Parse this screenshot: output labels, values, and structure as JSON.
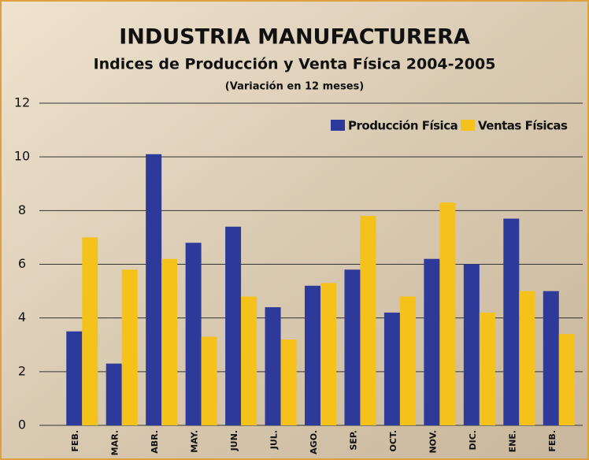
{
  "chart_data": {
    "type": "bar",
    "title": "INDUSTRIA MANUFACTURERA",
    "subtitle": "Indices de Producción y Venta Física 2004-2005",
    "note": "(Variación en 12 meses)",
    "categories": [
      "FEB.",
      "MAR.",
      "ABR.",
      "MAY.",
      "JUN.",
      "JUL.",
      "AGO.",
      "SEP.",
      "OCT.",
      "NOV.",
      "DIC.",
      "ENE.",
      "FEB."
    ],
    "series": [
      {
        "name": "Producción Física",
        "color": "#2e3a9a",
        "values": [
          3.5,
          2.3,
          10.1,
          6.8,
          7.4,
          4.4,
          5.2,
          5.8,
          4.2,
          6.2,
          6.0,
          7.7,
          5.0
        ]
      },
      {
        "name": "Ventas Físicas",
        "color": "#f5c21b",
        "values": [
          7.0,
          5.8,
          6.2,
          3.3,
          4.8,
          3.2,
          5.3,
          7.8,
          4.8,
          8.3,
          4.2,
          5.0,
          3.4
        ]
      }
    ],
    "ylim": [
      0,
      12
    ],
    "yticks": [
      0,
      2,
      4,
      6,
      8,
      10,
      12
    ],
    "grid": true,
    "legend": "top-right"
  }
}
